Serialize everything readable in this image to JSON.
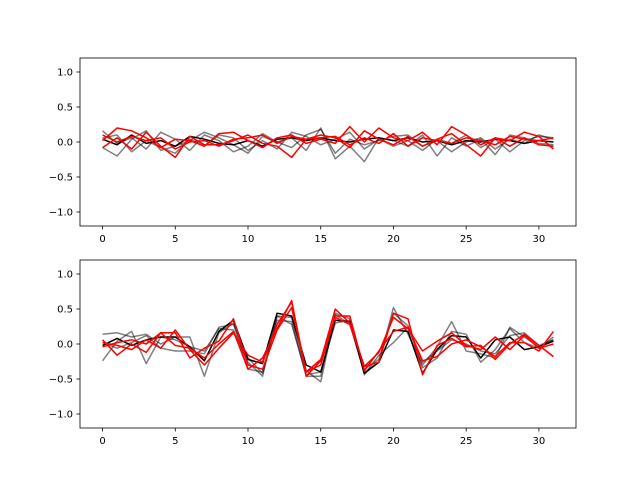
{
  "chart_data": [
    {
      "type": "line",
      "title": "",
      "xlabel": "",
      "ylabel": "",
      "xlim": [
        -1.55,
        32.55
      ],
      "ylim": [
        -1.2,
        1.2
      ],
      "xticks": [
        0,
        5,
        10,
        15,
        20,
        25,
        30
      ],
      "yticks": [
        -1.0,
        -0.5,
        0.0,
        0.5,
        1.0
      ],
      "xtick_labels": [
        "0",
        "5",
        "10",
        "15",
        "20",
        "25",
        "30"
      ],
      "ytick_labels": [
        "−1.0",
        "−0.5",
        "0.0",
        "0.5",
        "1.0"
      ],
      "grid": false,
      "series": [
        {
          "color": "#000000",
          "opacity": 0.5,
          "values": [
            0.16,
            -0.02,
            0.06,
            -0.1,
            0.14,
            0.04,
            -0.12,
            0.1,
            0.02,
            -0.14,
            -0.06,
            0.12,
            0.0,
            -0.08,
            0.1,
            0.18,
            -0.16,
            0.04,
            -0.04,
            0.02,
            0.08,
            0.1,
            -0.06,
            0.02,
            -0.14,
            0.0,
            0.06,
            -0.1,
            0.04,
            -0.02,
            0.1,
            0.04
          ]
        },
        {
          "color": "#000000",
          "opacity": 0.5,
          "values": [
            -0.08,
            -0.2,
            0.04,
            0.16,
            -0.12,
            -0.06,
            0.02,
            0.14,
            0.06,
            -0.04,
            -0.16,
            0.08,
            0.0,
            0.06,
            -0.12,
            0.2,
            -0.24,
            -0.06,
            -0.28,
            0.06,
            0.02,
            -0.06,
            0.1,
            -0.2,
            0.06,
            -0.06,
            0.04,
            -0.18,
            0.1,
            0.06,
            -0.02,
            -0.04
          ]
        },
        {
          "color": "#000000",
          "opacity": 0.5,
          "values": [
            0.06,
            0.1,
            -0.14,
            0.02,
            -0.08,
            -0.16,
            0.04,
            -0.06,
            0.1,
            0.06,
            -0.12,
            0.02,
            -0.1,
            0.14,
            0.08,
            -0.04,
            0.04,
            0.14,
            -0.1,
            0.04,
            -0.06,
            0.02,
            -0.12,
            0.04,
            -0.02,
            0.1,
            -0.08,
            0.04,
            -0.14,
            0.02,
            0.08,
            0.06
          ]
        },
        {
          "color": "#000000",
          "opacity": 1.0,
          "values": [
            0.04,
            -0.04,
            0.1,
            -0.02,
            0.02,
            -0.06,
            0.08,
            0.04,
            -0.02,
            -0.04,
            0.02,
            -0.06,
            0.04,
            0.06,
            0.02,
            0.06,
            0.02,
            0.0,
            0.04,
            0.06,
            0.02,
            0.06,
            0.0,
            0.02,
            -0.04,
            0.02,
            0.0,
            0.04,
            0.02,
            -0.02,
            0.02,
            0.0
          ]
        },
        {
          "color": "#ff0000",
          "opacity": 1.0,
          "values": [
            0.02,
            0.2,
            0.16,
            0.06,
            -0.08,
            0.04,
            0.02,
            -0.06,
            0.12,
            0.14,
            0.02,
            -0.08,
            0.06,
            0.1,
            -0.02,
            0.04,
            -0.02,
            0.22,
            0.0,
            0.2,
            0.06,
            0.02,
            0.14,
            -0.04,
            0.22,
            0.1,
            -0.04,
            0.06,
            0.02,
            0.14,
            0.08,
            -0.1
          ]
        },
        {
          "color": "#ff0000",
          "opacity": 1.0,
          "values": [
            -0.08,
            0.06,
            -0.1,
            0.14,
            -0.06,
            -0.22,
            0.08,
            -0.04,
            -0.04,
            0.02,
            0.1,
            -0.02,
            -0.06,
            -0.22,
            0.04,
            0.1,
            0.06,
            -0.08,
            0.16,
            0.04,
            -0.04,
            0.08,
            -0.06,
            0.04,
            0.12,
            -0.04,
            -0.2,
            0.06,
            -0.06,
            0.06,
            -0.04,
            -0.06
          ]
        },
        {
          "color": "#ff0000",
          "opacity": 1.0,
          "values": [
            0.1,
            0.0,
            0.08,
            0.02,
            0.06,
            -0.1,
            0.0,
            0.02,
            -0.06,
            0.04,
            0.06,
            0.1,
            -0.02,
            0.08,
            0.04,
            0.06,
            0.08,
            -0.04,
            0.06,
            -0.02,
            0.12,
            -0.06,
            0.06,
            0.02,
            -0.02,
            0.06,
            0.02,
            -0.04,
            0.08,
            0.04,
            0.02,
            0.06
          ]
        }
      ]
    },
    {
      "type": "line",
      "title": "",
      "xlabel": "",
      "ylabel": "",
      "xlim": [
        -1.55,
        32.55
      ],
      "ylim": [
        -1.2,
        1.2
      ],
      "xticks": [
        0,
        5,
        10,
        15,
        20,
        25,
        30
      ],
      "yticks": [
        -1.0,
        -0.5,
        0.0,
        0.5,
        1.0
      ],
      "xtick_labels": [
        "0",
        "5",
        "10",
        "15",
        "20",
        "25",
        "30"
      ],
      "ytick_labels": [
        "−1.0",
        "−0.5",
        "0.0",
        "0.5",
        "1.0"
      ],
      "grid": false,
      "series": [
        {
          "color": "#000000",
          "opacity": 0.5,
          "values": [
            0.14,
            0.16,
            0.1,
            0.14,
            0.0,
            0.1,
            0.1,
            -0.46,
            0.16,
            0.3,
            -0.36,
            -0.4,
            0.4,
            0.38,
            -0.38,
            -0.54,
            0.42,
            0.28,
            -0.4,
            -0.26,
            0.52,
            0.14,
            -0.3,
            -0.04,
            0.32,
            -0.1,
            -0.14,
            -0.2,
            0.24,
            0.1,
            -0.04,
            0.06
          ]
        },
        {
          "color": "#000000",
          "opacity": 0.5,
          "values": [
            -0.24,
            0.04,
            0.18,
            -0.28,
            0.1,
            0.06,
            -0.04,
            -0.1,
            0.22,
            0.2,
            -0.26,
            -0.46,
            0.4,
            0.28,
            -0.44,
            -0.4,
            0.3,
            0.34,
            -0.36,
            -0.22,
            0.44,
            0.26,
            -0.34,
            -0.2,
            0.18,
            0.14,
            -0.26,
            -0.08,
            0.22,
            0.02,
            -0.06,
            0.1
          ]
        },
        {
          "color": "#000000",
          "opacity": 0.5,
          "values": [
            0.02,
            -0.06,
            0.02,
            0.12,
            -0.06,
            -0.1,
            -0.1,
            -0.14,
            0.24,
            0.28,
            -0.2,
            -0.42,
            0.34,
            0.32,
            -0.46,
            -0.46,
            0.44,
            0.36,
            -0.44,
            -0.16,
            0.02,
            0.24,
            -0.26,
            -0.1,
            0.06,
            0.0,
            -0.1,
            -0.14,
            0.12,
            0.16,
            -0.02,
            0.06
          ]
        },
        {
          "color": "#000000",
          "opacity": 1.0,
          "values": [
            -0.02,
            0.08,
            -0.02,
            0.06,
            0.1,
            0.1,
            -0.04,
            -0.24,
            0.18,
            0.34,
            -0.22,
            -0.28,
            0.44,
            0.4,
            -0.3,
            -0.4,
            0.34,
            0.32,
            -0.42,
            -0.26,
            0.2,
            0.18,
            -0.42,
            -0.08,
            0.12,
            0.1,
            -0.2,
            0.06,
            0.1,
            -0.08,
            -0.04,
            0.04
          ]
        },
        {
          "color": "#ff0000",
          "opacity": 1.0,
          "values": [
            0.06,
            -0.16,
            0.0,
            -0.12,
            0.16,
            -0.02,
            -0.06,
            -0.2,
            0.0,
            0.18,
            -0.36,
            -0.2,
            0.22,
            0.62,
            -0.46,
            -0.24,
            0.5,
            0.3,
            -0.32,
            -0.26,
            0.44,
            0.36,
            -0.44,
            -0.02,
            0.08,
            -0.04,
            -0.02,
            -0.22,
            0.0,
            0.14,
            -0.02,
            -0.18
          ]
        },
        {
          "color": "#ff0000",
          "opacity": 1.0,
          "values": [
            -0.04,
            0.02,
            0.06,
            0.0,
            0.16,
            0.16,
            -0.2,
            -0.06,
            0.04,
            0.36,
            -0.3,
            -0.36,
            0.2,
            0.52,
            -0.4,
            -0.3,
            0.4,
            0.4,
            -0.38,
            -0.1,
            0.18,
            0.24,
            -0.24,
            -0.18,
            0.0,
            0.06,
            -0.04,
            -0.18,
            0.02,
            0.02,
            -0.1,
            0.18
          ]
        },
        {
          "color": "#ff0000",
          "opacity": 1.0,
          "values": [
            0.02,
            -0.02,
            -0.08,
            0.06,
            -0.06,
            0.2,
            -0.08,
            -0.3,
            -0.06,
            0.16,
            -0.16,
            -0.26,
            0.28,
            0.6,
            -0.4,
            -0.22,
            0.38,
            0.28,
            -0.32,
            -0.12,
            0.38,
            0.22,
            -0.1,
            0.04,
            0.16,
            -0.02,
            -0.08,
            0.1,
            -0.08,
            0.12,
            -0.06,
            0.0
          ]
        }
      ]
    }
  ]
}
